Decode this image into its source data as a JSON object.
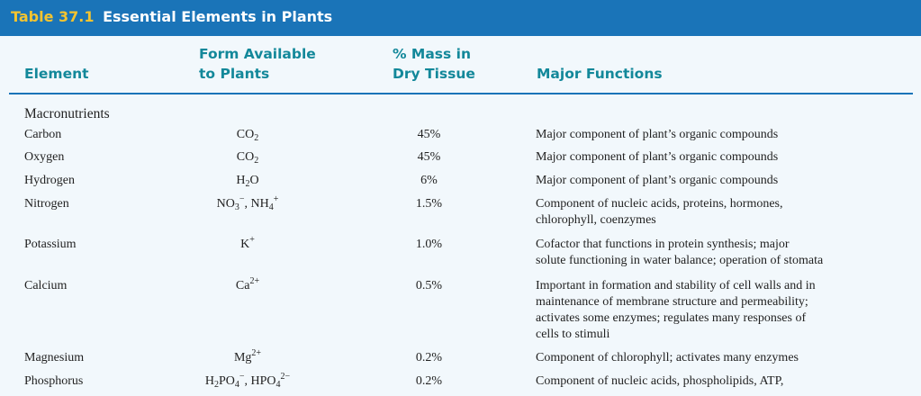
{
  "table": {
    "number": "Table 37.1",
    "title": "Essential Elements in Plants",
    "headers": {
      "element": "Element",
      "form_line1": "Form Available",
      "form_line2": "to Plants",
      "mass_line1": "% Mass in",
      "mass_line2": "Dry Tissue",
      "functions": "Major Functions"
    },
    "section": "Macronutrients",
    "rows": [
      {
        "element": "Carbon",
        "form": "CO₂",
        "mass": "45%",
        "functions": [
          "Major component of plant’s organic compounds"
        ]
      },
      {
        "element": "Oxygen",
        "form": "CO₂",
        "mass": "45%",
        "functions": [
          "Major component of plant’s organic compounds"
        ]
      },
      {
        "element": "Hydrogen",
        "form": "H₂O",
        "mass": "6%",
        "functions": [
          "Major component of plant’s organic compounds"
        ]
      },
      {
        "element": "Nitrogen",
        "form": "NO₃⁻, NH₄⁺",
        "mass": "1.5%",
        "functions": [
          "Component of nucleic acids, proteins, hormones,",
          "chlorophyll, coenzymes"
        ]
      },
      {
        "element": "Potassium",
        "form": "K⁺",
        "mass": "1.0%",
        "functions": [
          "Cofactor that functions in protein synthesis; major",
          "solute functioning in water balance; operation of stomata"
        ]
      },
      {
        "element": "Calcium",
        "form": "Ca²⁺",
        "mass": "0.5%",
        "functions": [
          "Important in formation and stability of cell walls and in",
          "maintenance of membrane structure and permeability;",
          "activates some enzymes; regulates many responses of",
          "cells to stimuli"
        ]
      },
      {
        "element": "Magnesium",
        "form": "Mg²⁺",
        "mass": "0.2%",
        "functions": [
          "Component of chlorophyll; activates many enzymes"
        ]
      },
      {
        "element": "Phosphorus",
        "form": "H₂PO₄⁻, HPO₄²⁻",
        "mass": "0.2%",
        "functions": [
          "Component of nucleic acids, phospholipids, ATP,"
        ]
      }
    ]
  }
}
